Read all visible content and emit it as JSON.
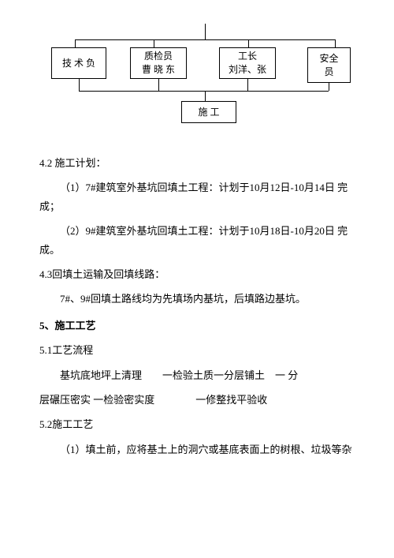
{
  "org": {
    "box1_line1": "技 术 负",
    "box2_line1": "质检员",
    "box2_line2": "曹 晓 东",
    "box3_line1": "工长",
    "box3_line2": "刘洋、张",
    "box4_line1": "安全",
    "box4_line2": "员",
    "box5": "施 工"
  },
  "s42_title": "4.2 施工计划：",
  "s42_p1": "（1）7#建筑室外基坑回填土工程：计划于10月12日-10月14日 完成；",
  "s42_p2": "（2）9#建筑室外基坑回填土工程：计划于10月18日-10月20日 完成。",
  "s43_title": "4.3回填土运输及回填线路：",
  "s43_p1": "7#、9#回填土路线均为先填场内基坑，后填路边基坑。",
  "s5_title": "5、施工工艺",
  "s51_title": "5.1工艺流程",
  "s51_flow1": "基坑底地坪上清理　　一检验土质一分层铺土　一 分",
  "s51_flow2": "层碾压密实 一检验密实度　　　　一修整找平验收",
  "s52_title": "5.2施工工艺",
  "s52_p1": "（1）填土前，应将基土上的洞穴或基底表面上的树根、垃圾等杂"
}
